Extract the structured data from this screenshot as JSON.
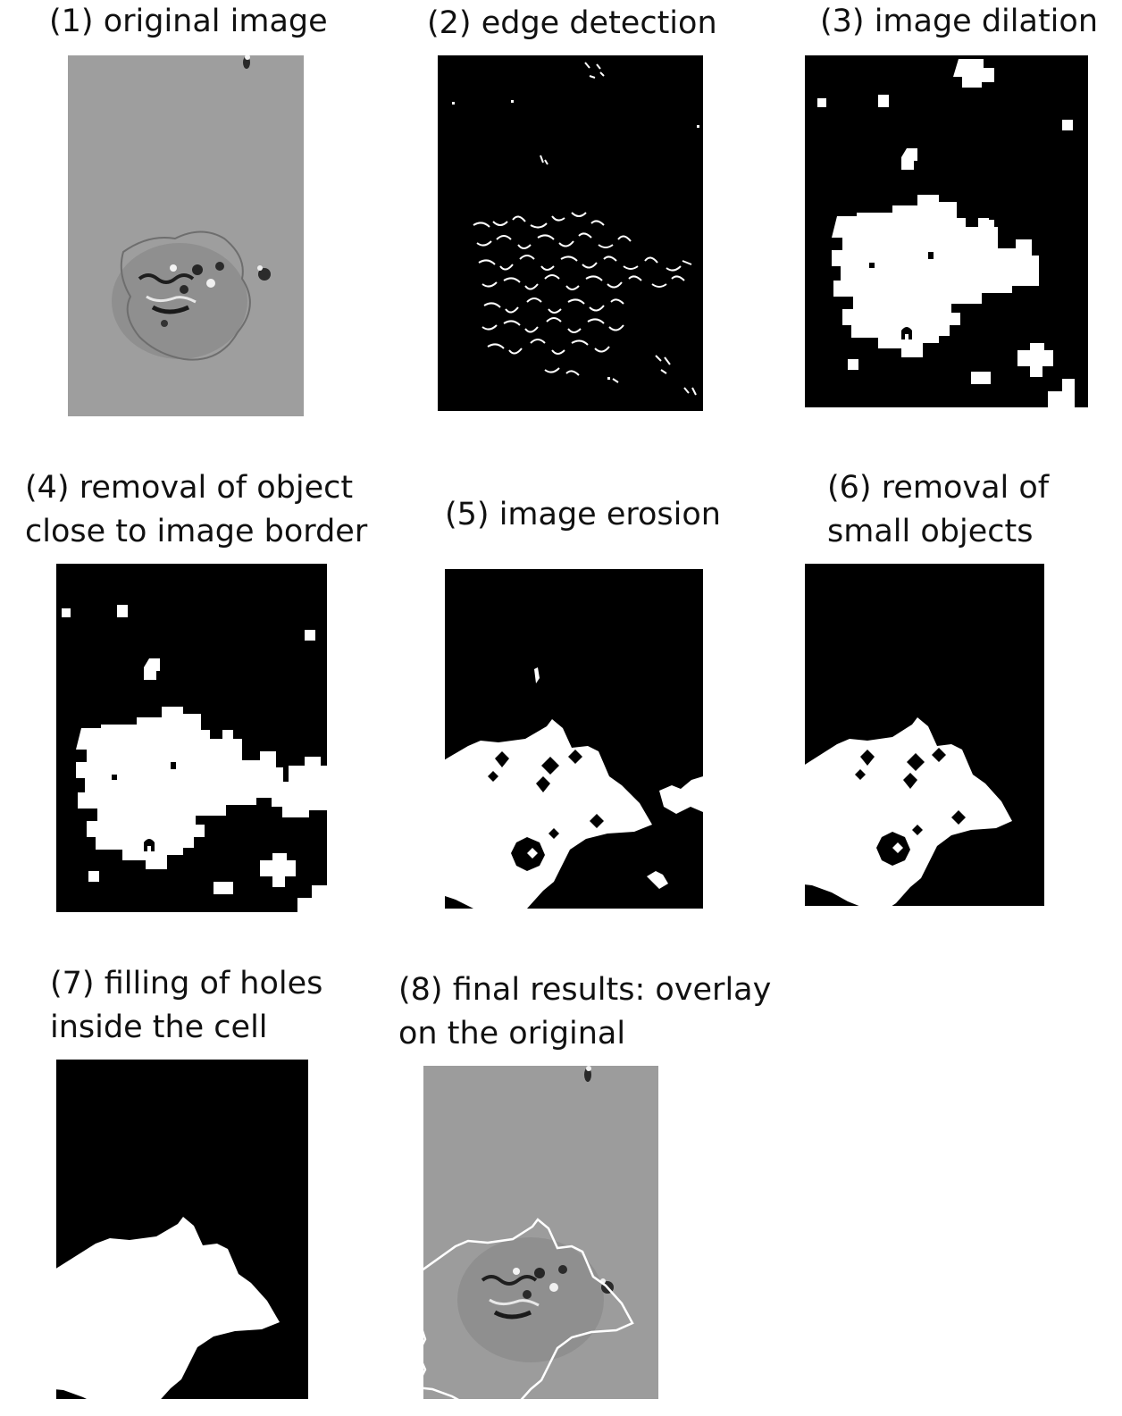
{
  "figure": {
    "panels": [
      {
        "id": 1,
        "caption": [
          "(1) original image"
        ],
        "kind": "grayscale"
      },
      {
        "id": 2,
        "caption": [
          "(2) edge detection"
        ],
        "kind": "binary"
      },
      {
        "id": 3,
        "caption": [
          "(3) image dilation"
        ],
        "kind": "binary"
      },
      {
        "id": 4,
        "caption": [
          "(4) removal of object",
          "close to image border"
        ],
        "kind": "binary"
      },
      {
        "id": 5,
        "caption": [
          "(5) image erosion"
        ],
        "kind": "binary"
      },
      {
        "id": 6,
        "caption": [
          "(6) removal of",
          "small objects"
        ],
        "kind": "binary"
      },
      {
        "id": 7,
        "caption": [
          "(7) filling of holes",
          "inside the cell"
        ],
        "kind": "binary"
      },
      {
        "id": 8,
        "caption": [
          "(8) final results: overlay",
          "on the original"
        ],
        "kind": "overlay"
      }
    ],
    "colors": {
      "gray_background": "#9c9c9c",
      "binary_background": "#000000",
      "foreground": "#ffffff"
    }
  }
}
